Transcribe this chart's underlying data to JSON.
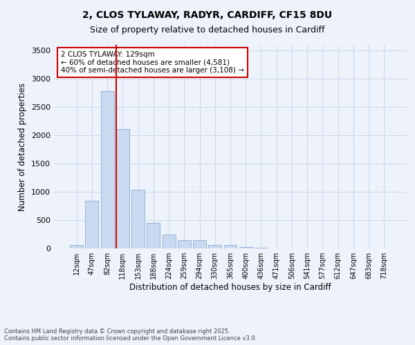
{
  "title_line1": "2, CLOS TYLAWAY, RADYR, CARDIFF, CF15 8DU",
  "title_line2": "Size of property relative to detached houses in Cardiff",
  "xlabel": "Distribution of detached houses by size in Cardiff",
  "ylabel": "Number of detached properties",
  "categories": [
    "12sqm",
    "47sqm",
    "82sqm",
    "118sqm",
    "153sqm",
    "188sqm",
    "224sqm",
    "259sqm",
    "294sqm",
    "330sqm",
    "365sqm",
    "400sqm",
    "436sqm",
    "471sqm",
    "506sqm",
    "541sqm",
    "577sqm",
    "612sqm",
    "647sqm",
    "683sqm",
    "718sqm"
  ],
  "values": [
    55,
    840,
    2780,
    2110,
    1040,
    455,
    245,
    150,
    145,
    65,
    55,
    30,
    15,
    5,
    5,
    2,
    1,
    0,
    0,
    0,
    0
  ],
  "bar_color": "#c8d9f0",
  "bar_edge_color": "#8aaed6",
  "background_color": "#eef3fb",
  "grid_color": "#c8d8ec",
  "vline_x_index": 3,
  "vline_color": "#cc0000",
  "annotation_title": "2 CLOS TYLAWAY: 129sqm",
  "annotation_line2": "← 60% of detached houses are smaller (4,581)",
  "annotation_line3": "40% of semi-detached houses are larger (3,108) →",
  "annotation_box_color": "#cc0000",
  "annotation_bg": "#ffffff",
  "ylim": [
    0,
    3600
  ],
  "yticks": [
    0,
    500,
    1000,
    1500,
    2000,
    2500,
    3000,
    3500
  ],
  "footer_line1": "Contains HM Land Registry data © Crown copyright and database right 2025.",
  "footer_line2": "Contains public sector information licensed under the Open Government Licence v3.0."
}
